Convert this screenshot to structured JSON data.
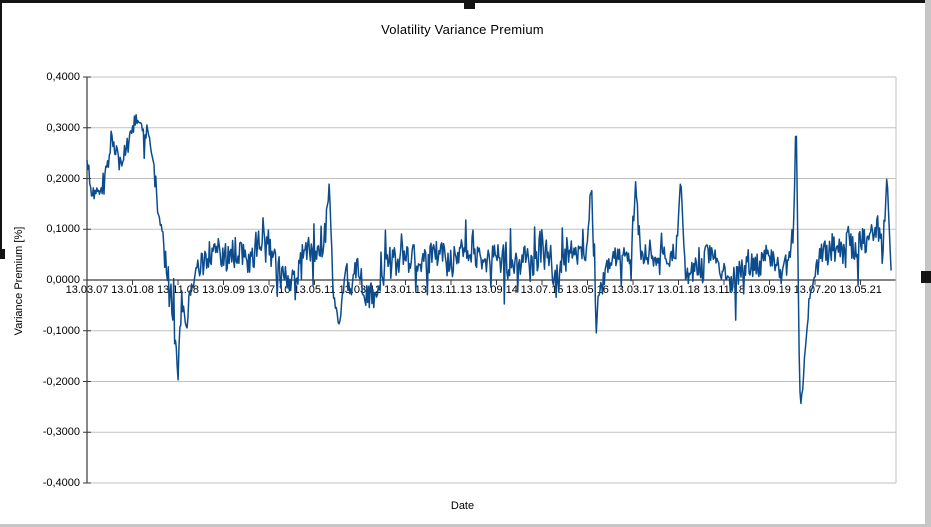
{
  "chart_data": {
    "type": "line",
    "title": "Volatility Variance Premium",
    "xlabel": "Date",
    "ylabel": "Variance Premium [%]",
    "ylim": [
      -0.4,
      0.4
    ],
    "grid": "horizontal",
    "legend": "none",
    "line_color": "#0d4c8c",
    "grid_color": "#c0c0c0",
    "axis_color": "#3a3a3a",
    "y_tick_values": [
      0.4,
      0.3,
      0.2,
      0.1,
      0.0,
      -0.1,
      -0.2,
      -0.3,
      -0.4
    ],
    "y_tick_labels": [
      "0,4000",
      "0,3000",
      "0,2000",
      "0,1000",
      "0,0000",
      "-0,1000",
      "-0,2000",
      "-0,3000",
      "-0,4000"
    ],
    "x_tick_labels": [
      "13.03.07",
      "13.01.08",
      "13.11.08",
      "13.09.09",
      "13.07.10",
      "13.05.11",
      "13.03.12",
      "13.01.13",
      "13.11.13",
      "13.09.14",
      "13.07.15",
      "13.05.16",
      "13.03.17",
      "13.01.18",
      "13.11.18",
      "13.09.19",
      "13.07.20",
      "13.05.21"
    ],
    "series_name": "Variance Premium",
    "x_end_fraction": 0.994,
    "seed": 123457,
    "points_count": 900,
    "envelope_anchors_format": "[x_fraction_of_axis, mean_value, noise_amplitude]",
    "envelope_anchors": [
      [
        0.0,
        0.22,
        0.03
      ],
      [
        0.006,
        0.18,
        0.02
      ],
      [
        0.02,
        0.175,
        0.02
      ],
      [
        0.031,
        0.29,
        0.025
      ],
      [
        0.04,
        0.23,
        0.025
      ],
      [
        0.048,
        0.25,
        0.03
      ],
      [
        0.061,
        0.315,
        0.025
      ],
      [
        0.07,
        0.285,
        0.025
      ],
      [
        0.076,
        0.295,
        0.02
      ],
      [
        0.082,
        0.22,
        0.035
      ],
      [
        0.092,
        0.1,
        0.045
      ],
      [
        0.101,
        0.02,
        0.04
      ],
      [
        0.108,
        -0.09,
        0.05
      ],
      [
        0.1125,
        -0.195,
        0.02
      ],
      [
        0.117,
        -0.05,
        0.045
      ],
      [
        0.122,
        -0.09,
        0.035
      ],
      [
        0.13,
        -0.01,
        0.035
      ],
      [
        0.142,
        0.035,
        0.035
      ],
      [
        0.155,
        0.055,
        0.04
      ],
      [
        0.17,
        0.04,
        0.04
      ],
      [
        0.185,
        0.05,
        0.045
      ],
      [
        0.2,
        0.04,
        0.04
      ],
      [
        0.217,
        0.08,
        0.045
      ],
      [
        0.235,
        0.03,
        0.045
      ],
      [
        0.252,
        -0.01,
        0.035
      ],
      [
        0.265,
        0.04,
        0.045
      ],
      [
        0.28,
        0.07,
        0.05
      ],
      [
        0.294,
        0.09,
        0.055
      ],
      [
        0.2995,
        0.185,
        0.02
      ],
      [
        0.304,
        0.01,
        0.045
      ],
      [
        0.3115,
        -0.085,
        0.025
      ],
      [
        0.32,
        0.0,
        0.045
      ],
      [
        0.332,
        0.015,
        0.045
      ],
      [
        0.345,
        -0.02,
        0.04
      ],
      [
        0.356,
        -0.045,
        0.035
      ],
      [
        0.368,
        0.025,
        0.045
      ],
      [
        0.385,
        0.045,
        0.045
      ],
      [
        0.405,
        0.04,
        0.04
      ],
      [
        0.425,
        0.05,
        0.04
      ],
      [
        0.445,
        0.04,
        0.042
      ],
      [
        0.465,
        0.05,
        0.04
      ],
      [
        0.487,
        0.042,
        0.042
      ],
      [
        0.507,
        0.05,
        0.04
      ],
      [
        0.522,
        0.02,
        0.045
      ],
      [
        0.538,
        0.05,
        0.04
      ],
      [
        0.553,
        0.035,
        0.045
      ],
      [
        0.566,
        0.06,
        0.05
      ],
      [
        0.578,
        0.01,
        0.05
      ],
      [
        0.59,
        0.05,
        0.045
      ],
      [
        0.605,
        0.045,
        0.04
      ],
      [
        0.618,
        0.06,
        0.035
      ],
      [
        0.6235,
        0.185,
        0.02
      ],
      [
        0.627,
        0.0,
        0.045
      ],
      [
        0.6295,
        -0.1,
        0.022
      ],
      [
        0.634,
        0.005,
        0.04
      ],
      [
        0.645,
        0.04,
        0.038
      ],
      [
        0.66,
        0.05,
        0.038
      ],
      [
        0.672,
        0.05,
        0.035
      ],
      [
        0.6785,
        0.195,
        0.018
      ],
      [
        0.684,
        0.05,
        0.035
      ],
      [
        0.7,
        0.05,
        0.035
      ],
      [
        0.715,
        0.05,
        0.035
      ],
      [
        0.728,
        0.06,
        0.035
      ],
      [
        0.734,
        0.21,
        0.018
      ],
      [
        0.7395,
        0.01,
        0.045
      ],
      [
        0.752,
        0.03,
        0.045
      ],
      [
        0.77,
        0.04,
        0.04
      ],
      [
        0.788,
        0.025,
        0.04
      ],
      [
        0.8,
        -0.005,
        0.045
      ],
      [
        0.812,
        0.035,
        0.038
      ],
      [
        0.828,
        0.04,
        0.038
      ],
      [
        0.845,
        0.03,
        0.038
      ],
      [
        0.858,
        0.02,
        0.038
      ],
      [
        0.868,
        0.035,
        0.03
      ],
      [
        0.8735,
        0.1,
        0.03
      ],
      [
        0.8765,
        0.345,
        0.012
      ],
      [
        0.879,
        0.02,
        0.04
      ],
      [
        0.8815,
        -0.26,
        0.028
      ],
      [
        0.885,
        -0.22,
        0.045
      ],
      [
        0.889,
        -0.11,
        0.035
      ],
      [
        0.893,
        -0.03,
        0.025
      ],
      [
        0.901,
        0.025,
        0.038
      ],
      [
        0.912,
        0.05,
        0.04
      ],
      [
        0.925,
        0.06,
        0.045
      ],
      [
        0.94,
        0.07,
        0.045
      ],
      [
        0.9555,
        0.075,
        0.048
      ],
      [
        0.968,
        0.055,
        0.045
      ],
      [
        0.9775,
        0.12,
        0.035
      ],
      [
        0.983,
        0.045,
        0.038
      ],
      [
        0.9888,
        0.185,
        0.022
      ],
      [
        0.994,
        0.02,
        0.015
      ]
    ]
  }
}
